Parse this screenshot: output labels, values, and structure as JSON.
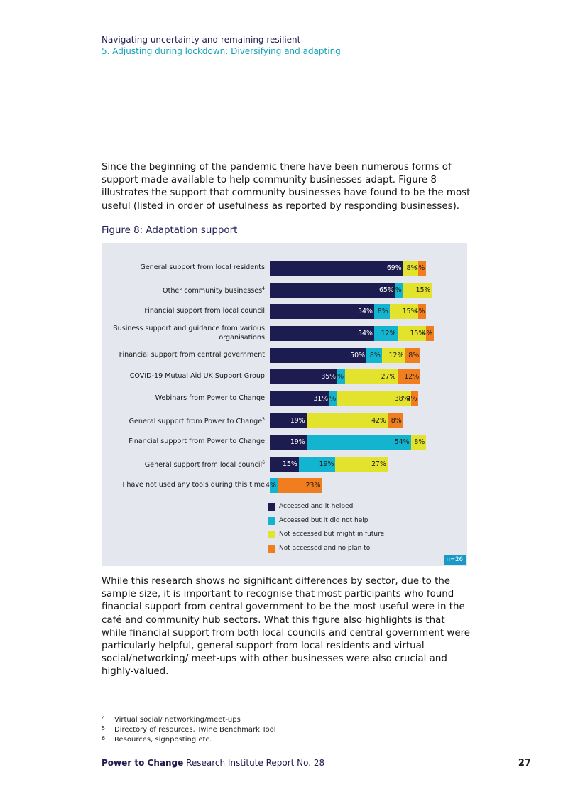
{
  "header": {
    "line1": "Navigating uncertainty and remaining resilient",
    "line2": "5. Adjusting during lockdown: Diversifying and adapting"
  },
  "intro_paragraph": "Since the beginning of the pandemic there have been numerous forms of support made available to help community businesses adapt. Figure 8 illustrates the support that community businesses have found to be the most useful (listed in order of usefulness as reported by responding businesses).",
  "figure_title": "Figure 8: Adaptation support",
  "chart_data": {
    "type": "bar",
    "stacked": true,
    "orientation": "horizontal",
    "title": "Figure 8: Adaptation support",
    "categories": [
      {
        "label": "General support from local residents",
        "note": ""
      },
      {
        "label": "Other community businesses",
        "note": "4"
      },
      {
        "label": "Financial support from local council",
        "note": ""
      },
      {
        "label": "Business support and guidance from various organisations",
        "note": ""
      },
      {
        "label": "Financial support from central government",
        "note": ""
      },
      {
        "label": "COVID-19 Mutual Aid UK Support Group",
        "note": ""
      },
      {
        "label": "Webinars from Power to Change",
        "note": ""
      },
      {
        "label": "General support from Power to Change",
        "note": "5"
      },
      {
        "label": "Financial support from Power to Change",
        "note": ""
      },
      {
        "label": "General support from local council",
        "note": "6"
      },
      {
        "label": "I have not used any tools during this time",
        "note": ""
      }
    ],
    "series": [
      {
        "name": "Accessed and it helped",
        "color": "#1c1c50",
        "text_color": "#ffffff",
        "values": [
          69,
          65,
          54,
          54,
          50,
          35,
          31,
          19,
          19,
          15,
          0
        ]
      },
      {
        "name": "Accessed but it did not help",
        "color": "#13b4cf",
        "text_color": "#1a1a1a",
        "values": [
          0,
          4,
          8,
          12,
          8,
          4,
          4,
          0,
          54,
          19,
          4
        ]
      },
      {
        "name": "Not accessed but might in future",
        "color": "#e3e22c",
        "text_color": "#1a1a1a",
        "values": [
          8,
          15,
          15,
          15,
          12,
          27,
          38,
          42,
          8,
          27,
          0
        ]
      },
      {
        "name": "Not accessed and no plan to",
        "color": "#f07e1f",
        "text_color": "#1a1a1a",
        "values": [
          4,
          0,
          4,
          4,
          8,
          12,
          4,
          8,
          0,
          0,
          23
        ]
      }
    ],
    "xlim": [
      0,
      100
    ],
    "legend_position": "bottom",
    "sample_note": "n=26"
  },
  "body_paragraph": "While this research shows no significant differences by sector, due to the sample size, it is important to recognise that most participants who found financial support from central government to be the most useful were in the café and community hub sectors. What this figure also highlights is that while financial support from both local councils and central government were particularly helpful, general support from local residents and virtual social/networking/ meet-ups with other businesses were also crucial and highly-valued.",
  "footnotes": [
    {
      "num": "4",
      "text": "Virtual social/ networking/meet-ups"
    },
    {
      "num": "5",
      "text": "Directory of resources, Twine Benchmark Tool"
    },
    {
      "num": "6",
      "text": "Resources, signposting etc."
    }
  ],
  "footer": {
    "brand": "Power to Change",
    "report": "Research Institute Report No. 28",
    "page_number": "27"
  }
}
